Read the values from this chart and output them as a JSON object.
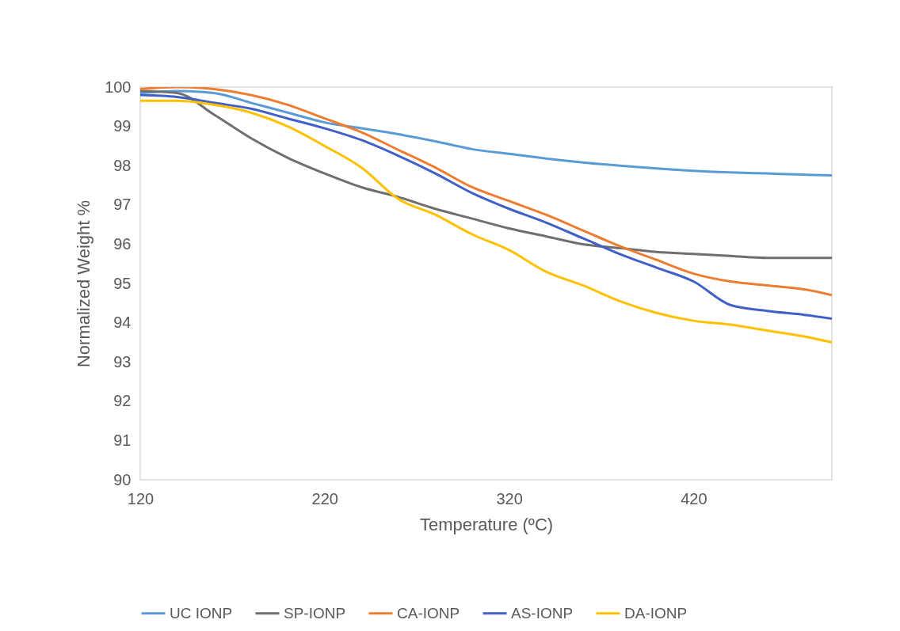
{
  "chart_data": {
    "type": "line",
    "xlabel": "Temperature (ºC)",
    "ylabel": "Normalized Weight %",
    "x": [
      120,
      140,
      160,
      180,
      200,
      220,
      240,
      260,
      280,
      300,
      320,
      340,
      360,
      380,
      400,
      420,
      440,
      460,
      480,
      495
    ],
    "xlim": [
      120,
      495
    ],
    "xticks": [
      120,
      220,
      320,
      420
    ],
    "ylim": [
      90,
      100
    ],
    "yticks": [
      90,
      91,
      92,
      93,
      94,
      95,
      96,
      97,
      98,
      99,
      100
    ],
    "legend": "bottom",
    "series": [
      {
        "name": "UC IONP",
        "color": "#5b9bd5",
        "values": [
          99.85,
          99.9,
          99.85,
          99.6,
          99.35,
          99.1,
          98.95,
          98.8,
          98.62,
          98.42,
          98.3,
          98.18,
          98.08,
          98.0,
          97.93,
          97.87,
          97.83,
          97.8,
          97.77,
          97.75
        ]
      },
      {
        "name": "SP-IONP",
        "color": "#6f6f6f",
        "values": [
          99.9,
          99.85,
          99.3,
          98.7,
          98.2,
          97.8,
          97.45,
          97.2,
          96.9,
          96.65,
          96.4,
          96.2,
          96.0,
          95.9,
          95.8,
          95.75,
          95.7,
          95.65,
          95.65,
          95.65
        ]
      },
      {
        "name": "CA-IONP",
        "color": "#ed7d31",
        "values": [
          99.95,
          100,
          99.95,
          99.8,
          99.55,
          99.2,
          98.85,
          98.4,
          97.95,
          97.45,
          97.1,
          96.75,
          96.35,
          95.95,
          95.6,
          95.25,
          95.05,
          94.95,
          94.85,
          94.7
        ]
      },
      {
        "name": "AS-IONP",
        "color": "#4060c8",
        "values": [
          99.8,
          99.75,
          99.6,
          99.45,
          99.2,
          98.95,
          98.65,
          98.25,
          97.8,
          97.3,
          96.9,
          96.55,
          96.15,
          95.75,
          95.4,
          95.05,
          94.45,
          94.3,
          94.2,
          94.1
        ]
      },
      {
        "name": "DA-IONP",
        "color": "#ffc000",
        "values": [
          99.65,
          99.65,
          99.55,
          99.35,
          99.0,
          98.5,
          97.95,
          97.15,
          96.75,
          96.25,
          95.85,
          95.3,
          94.95,
          94.55,
          94.25,
          94.05,
          93.95,
          93.8,
          93.65,
          93.5
        ]
      }
    ]
  }
}
